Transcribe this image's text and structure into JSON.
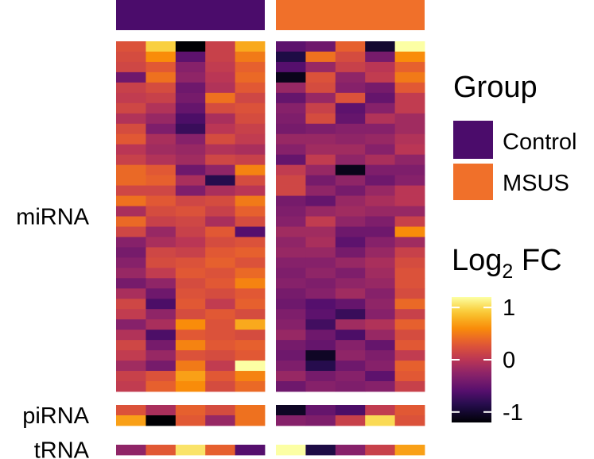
{
  "chart_data": {
    "type": "heatmap",
    "color_scale": "inferno",
    "value_range": [
      -1.2,
      1.2
    ],
    "groups": [
      {
        "name": "Control",
        "color": "#4b0c6b",
        "columns": 5
      },
      {
        "name": "MSUS",
        "color": "#f0702a",
        "columns": 5
      }
    ],
    "row_groups": [
      {
        "label": "miRNA",
        "rows": [
          [
            0.25,
            0.95,
            -1.2,
            0.1,
            0.75,
            -0.55,
            -0.45,
            0.35,
            -1.0,
            1.2
          ],
          [
            0.2,
            0.6,
            -0.55,
            0.1,
            0.5,
            -0.9,
            0.45,
            0.2,
            -0.4,
            0.6
          ],
          [
            0.15,
            0.3,
            -0.3,
            0.05,
            0.35,
            -0.6,
            -0.2,
            0.1,
            0.0,
            0.35
          ],
          [
            -0.45,
            0.45,
            -0.25,
            0.0,
            0.4,
            -1.1,
            0.25,
            -0.25,
            0.05,
            0.5
          ],
          [
            0.1,
            0.2,
            -0.45,
            -0.05,
            0.3,
            -0.2,
            0.2,
            -0.3,
            -0.4,
            0.3
          ],
          [
            0.05,
            0.1,
            -0.4,
            0.45,
            0.15,
            -0.5,
            -0.2,
            0.25,
            -0.5,
            0.05
          ],
          [
            0.15,
            -0.05,
            -0.5,
            0.2,
            0.25,
            -0.3,
            0.1,
            -0.55,
            -0.3,
            0.05
          ],
          [
            -0.05,
            -0.2,
            -0.65,
            -0.1,
            0.2,
            -0.35,
            0.2,
            -0.5,
            -0.05,
            -0.15
          ],
          [
            0.2,
            -0.35,
            -0.75,
            0.0,
            0.1,
            -0.4,
            -0.35,
            -0.3,
            -0.3,
            -0.15
          ],
          [
            0.3,
            -0.1,
            -0.3,
            0.2,
            0.05,
            -0.2,
            -0.2,
            -0.25,
            -0.2,
            -0.05
          ],
          [
            0.0,
            -0.15,
            -0.2,
            -0.05,
            -0.1,
            -0.3,
            -0.15,
            -0.15,
            -0.3,
            0.0
          ],
          [
            0.1,
            -0.05,
            -0.15,
            0.15,
            0.1,
            -0.5,
            0.05,
            -0.25,
            -0.1,
            -0.25
          ],
          [
            0.4,
            0.3,
            -0.45,
            -0.25,
            0.55,
            0.05,
            -0.2,
            -1.1,
            -0.35,
            -0.35
          ],
          [
            0.4,
            0.35,
            -0.1,
            -0.85,
            0.2,
            0.15,
            -0.4,
            -0.25,
            -0.45,
            -0.3
          ],
          [
            0.15,
            0.15,
            -0.35,
            -0.1,
            0.0,
            0.15,
            -0.25,
            -0.4,
            -0.2,
            0.0
          ],
          [
            0.45,
            0.3,
            0.15,
            0.2,
            0.5,
            -0.4,
            -0.5,
            -0.2,
            -0.1,
            0.0
          ],
          [
            -0.1,
            0.2,
            0.25,
            0.1,
            0.35,
            -0.35,
            -0.2,
            -0.15,
            -0.2,
            -0.2
          ],
          [
            0.4,
            0.1,
            0.15,
            -0.1,
            0.2,
            -0.3,
            0.05,
            -0.25,
            -0.35,
            0.1
          ],
          [
            0.15,
            -0.2,
            0.1,
            0.3,
            -0.6,
            -0.15,
            -0.15,
            -0.45,
            -0.45,
            0.6
          ],
          [
            -0.3,
            -0.1,
            0.0,
            0.2,
            0.25,
            -0.25,
            -0.1,
            -0.55,
            -0.3,
            -0.15
          ],
          [
            -0.4,
            0.15,
            0.1,
            0.3,
            0.35,
            -0.2,
            -0.2,
            -0.4,
            -0.2,
            0.1
          ],
          [
            -0.3,
            0.2,
            0.25,
            0.35,
            0.25,
            -0.3,
            -0.3,
            -0.2,
            -0.1,
            0.2
          ],
          [
            -0.2,
            0.05,
            0.3,
            0.25,
            0.4,
            -0.35,
            -0.25,
            -0.35,
            -0.15,
            0.25
          ],
          [
            -0.4,
            -0.25,
            0.2,
            0.3,
            0.55,
            -0.3,
            -0.35,
            -0.25,
            -0.2,
            0.25
          ],
          [
            -0.1,
            -0.45,
            0.25,
            0.2,
            0.3,
            -0.4,
            -0.3,
            -0.15,
            -0.3,
            0.2
          ],
          [
            0.15,
            -0.65,
            0.3,
            0.05,
            0.35,
            -0.45,
            -0.6,
            -0.5,
            -0.25,
            0.4
          ],
          [
            0.05,
            -0.25,
            0.2,
            0.3,
            0.2,
            -0.35,
            -0.55,
            -0.75,
            -0.3,
            0.1
          ],
          [
            -0.3,
            -0.1,
            0.6,
            0.25,
            0.75,
            -0.3,
            -0.7,
            -0.15,
            -0.05,
            0.35
          ],
          [
            -0.05,
            -0.65,
            0.3,
            0.25,
            0.2,
            -0.2,
            -0.45,
            -0.65,
            -0.2,
            0.2
          ],
          [
            0.15,
            -0.4,
            0.55,
            0.3,
            0.35,
            -0.4,
            -0.5,
            -0.3,
            -0.5,
            0.3
          ],
          [
            0.05,
            -0.2,
            0.25,
            0.2,
            0.3,
            -0.45,
            -1.05,
            -0.25,
            -0.35,
            0.05
          ],
          [
            -0.15,
            -0.4,
            0.5,
            0.05,
            1.2,
            -0.35,
            -0.85,
            -0.45,
            -0.3,
            0.35
          ],
          [
            0.1,
            0.25,
            0.7,
            0.3,
            0.55,
            -0.2,
            -0.4,
            -0.3,
            -0.55,
            0.3
          ],
          [
            0.05,
            0.35,
            0.6,
            0.2,
            0.4,
            -0.45,
            -0.3,
            -0.35,
            -0.3,
            0.1
          ]
        ]
      },
      {
        "label": "piRNA",
        "rows": [
          [
            0.25,
            -0.1,
            0.35,
            0.2,
            0.45,
            -1.05,
            -0.5,
            -0.65,
            0.05,
            0.3
          ],
          [
            0.7,
            -1.2,
            0.3,
            -0.2,
            0.45,
            -0.3,
            -0.35,
            0.1,
            1.0,
            0.25
          ]
        ]
      },
      {
        "label": "tRNA",
        "rows": [
          [
            -0.25,
            0.3,
            1.05,
            0.35,
            -0.6,
            1.2,
            -0.9,
            -0.3,
            0.1,
            0.7
          ]
        ]
      }
    ],
    "legend": {
      "group_title": "Group",
      "group_items": [
        "Control",
        "MSUS"
      ],
      "colorbar_title_main": "Log",
      "colorbar_title_sub": "2",
      "colorbar_title_tail": " FC",
      "colorbar_ticks": [
        {
          "label": "1",
          "value": 1
        },
        {
          "label": "0",
          "value": 0
        },
        {
          "label": "-1",
          "value": -1
        }
      ]
    }
  }
}
